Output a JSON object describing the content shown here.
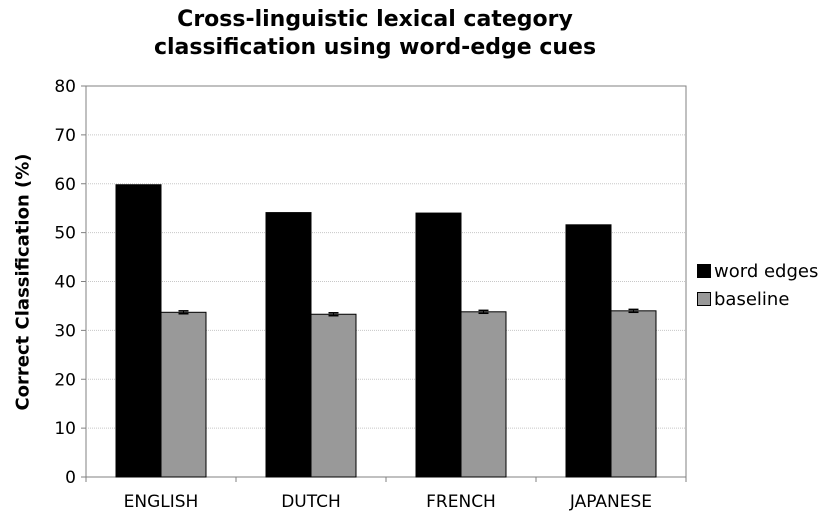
{
  "chart_data": {
    "type": "bar",
    "title_lines": [
      "Cross-linguistic lexical category",
      "classification using word-edge cues"
    ],
    "xlabel": "",
    "ylabel": "Correct Classification (%)",
    "categories": [
      "ENGLISH",
      "DUTCH",
      "FRENCH",
      "JAPANESE"
    ],
    "series": [
      {
        "name": "word edges",
        "values": [
          59.8,
          54.1,
          54.0,
          51.6
        ],
        "error": [
          0,
          0,
          0,
          0
        ],
        "color": "#000000"
      },
      {
        "name": "baseline",
        "values": [
          33.7,
          33.3,
          33.8,
          34.0
        ],
        "error": [
          0.3,
          0.3,
          0.3,
          0.3
        ],
        "color": "#999999"
      }
    ],
    "ylim": [
      0,
      80
    ],
    "yticks": [
      0,
      10,
      20,
      30,
      40,
      50,
      60,
      70,
      80
    ],
    "grid": true,
    "legend": "right"
  }
}
